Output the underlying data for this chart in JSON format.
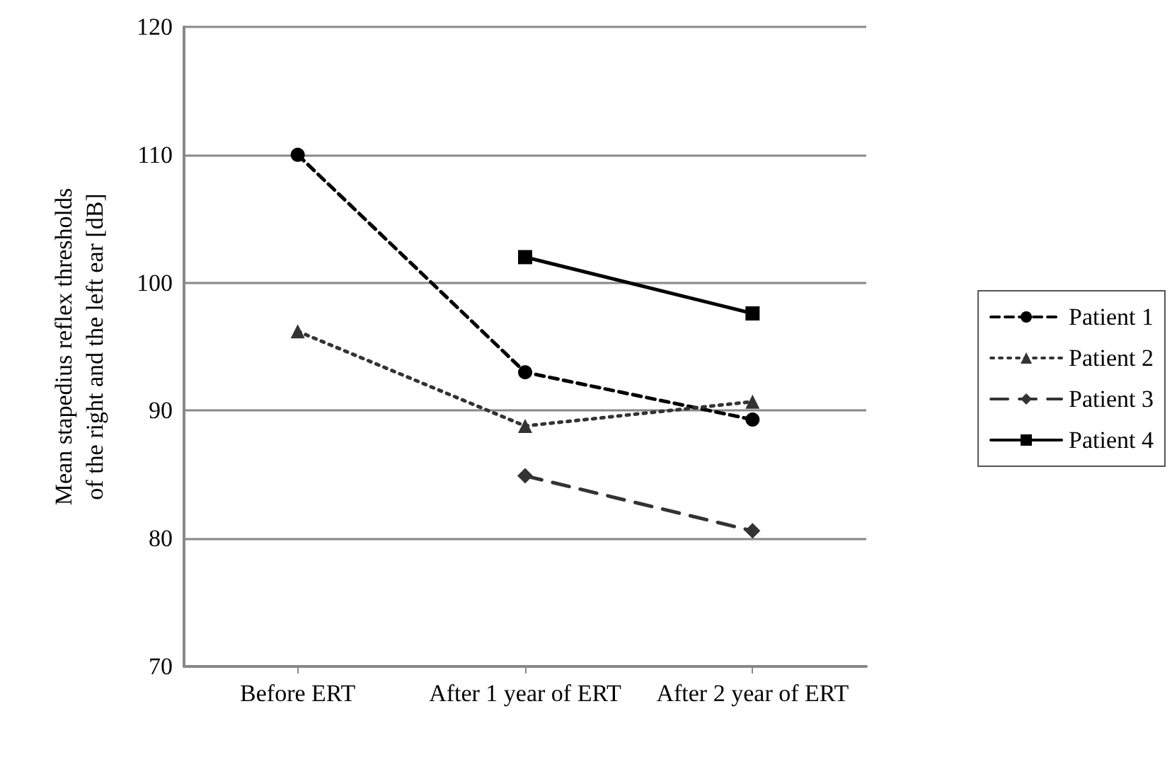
{
  "chart_data": {
    "type": "line",
    "ylabel": "Mean stapedius reflex thresholds\nof the right and the left ear [dB]",
    "categories": [
      "Before ERT",
      "After 1 year of ERT",
      "After 2 year of ERT"
    ],
    "series": [
      {
        "name": "Patient 1",
        "color": "#000000",
        "marker": "circle",
        "line_style": "dashed",
        "values": [
          110,
          93.0,
          89.3
        ]
      },
      {
        "name": "Patient 2",
        "color": "#333333",
        "marker": "triangle",
        "line_style": "dotted",
        "values": [
          96.2,
          88.8,
          90.7
        ]
      },
      {
        "name": "Patient 3",
        "color": "#333333",
        "marker": "diamond",
        "line_style": "dashed",
        "values": [
          null,
          84.9,
          80.6
        ]
      },
      {
        "name": "Patient 4",
        "color": "#000000",
        "marker": "square",
        "line_style": "solid",
        "values": [
          null,
          102.0,
          97.6
        ]
      }
    ],
    "ylim": [
      70,
      120
    ],
    "yticks": [
      70,
      80,
      90,
      100,
      110,
      120
    ],
    "grid": "y",
    "legend": "right"
  }
}
